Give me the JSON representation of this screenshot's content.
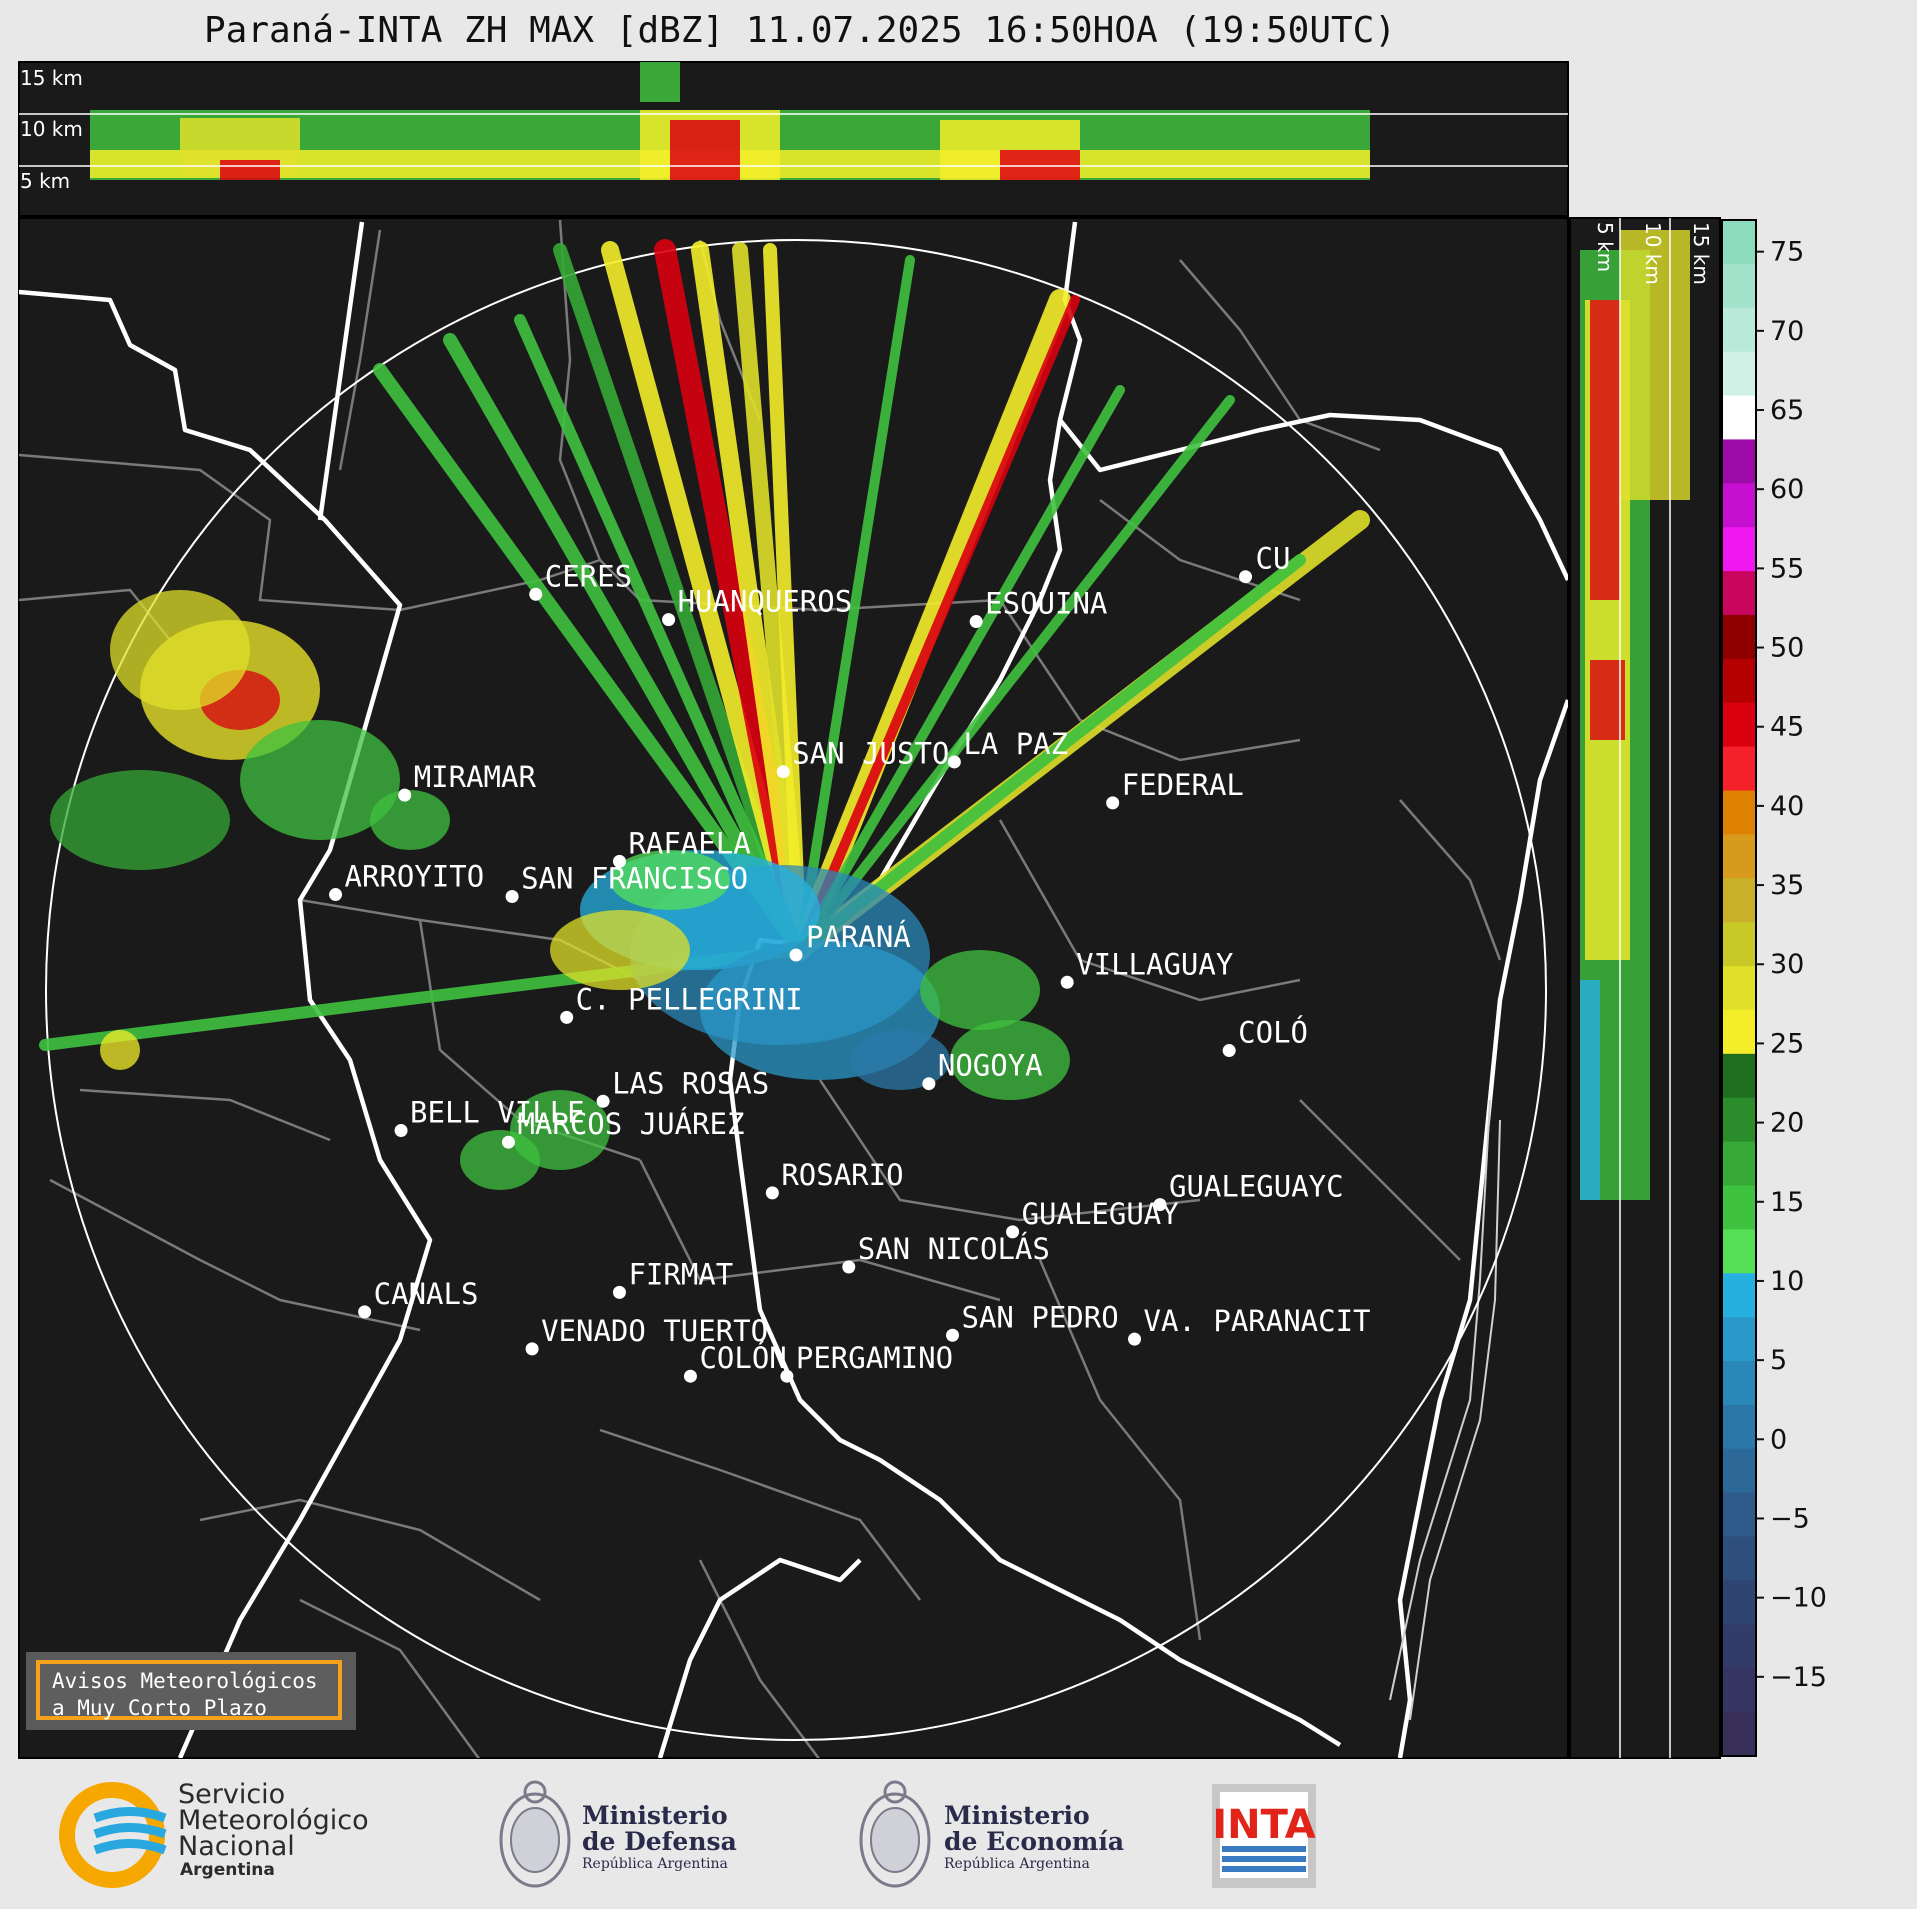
{
  "title": "Paraná-INTA ZH MAX [dBZ] 11.07.2025 16:50HOA (19:50UTC)",
  "top_panel": {
    "labels": [
      "15 km",
      "10 km",
      "5 km"
    ]
  },
  "side_panel": {
    "labels": [
      "5 km",
      "10 km",
      "15 km"
    ]
  },
  "cities": [
    {
      "name": "CERES",
      "lat": -29.88,
      "lon": -61.95
    },
    {
      "name": "HUANQUEROS",
      "lat": -30.01,
      "lon": -61.22
    },
    {
      "name": "ESQUINA",
      "lat": -30.02,
      "lon": -59.53
    },
    {
      "name": "CU",
      "lat": -29.79,
      "lon": -58.05
    },
    {
      "name": "SAN JUSTO",
      "lat": -30.79,
      "lon": -60.59
    },
    {
      "name": "LA PAZ",
      "lat": -30.74,
      "lon": -59.65
    },
    {
      "name": "FEDERAL",
      "lat": -30.95,
      "lon": -58.78
    },
    {
      "name": "MIRAMAR",
      "lat": -30.91,
      "lon": -62.67
    },
    {
      "name": "RAFAELA",
      "lat": -31.25,
      "lon": -61.49
    },
    {
      "name": "ARROYITO",
      "lat": -31.42,
      "lon": -63.05
    },
    {
      "name": "SAN FRANCISCO",
      "lat": -31.43,
      "lon": -62.08
    },
    {
      "name": "PARANÁ",
      "lat": -31.73,
      "lon": -60.52
    },
    {
      "name": "VILLAGUAY",
      "lat": -31.87,
      "lon": -59.03
    },
    {
      "name": "C. PELLEGRINI",
      "lat": -32.05,
      "lon": -61.78
    },
    {
      "name": "COLÓ",
      "lat": -32.22,
      "lon": -58.14
    },
    {
      "name": "NOGOYA",
      "lat": -32.39,
      "lon": -59.79
    },
    {
      "name": "LAS ROSAS",
      "lat": -32.48,
      "lon": -61.58
    },
    {
      "name": "BELL VILLE",
      "lat": -32.63,
      "lon": -62.69
    },
    {
      "name": "MARCOS JUÁREZ",
      "lat": -32.69,
      "lon": -62.1
    },
    {
      "name": "ROSARIO",
      "lat": -32.95,
      "lon": -60.65
    },
    {
      "name": "GUALEGUAYC",
      "lat": -33.01,
      "lon": -58.52
    },
    {
      "name": "GUALEGUAY",
      "lat": -33.15,
      "lon": -59.33
    },
    {
      "name": "SAN NICOLÁS",
      "lat": -33.33,
      "lon": -60.23
    },
    {
      "name": "FIRMAT",
      "lat": -33.46,
      "lon": -61.49
    },
    {
      "name": "CANALS",
      "lat": -33.56,
      "lon": -62.89
    },
    {
      "name": "SAN PEDRO",
      "lat": -33.68,
      "lon": -59.66
    },
    {
      "name": "VENADO TUERTO",
      "lat": -33.75,
      "lon": -61.97
    },
    {
      "name": "VA. PARANACIT",
      "lat": -33.7,
      "lon": -58.66
    },
    {
      "name": "COLÓN",
      "lat": -33.89,
      "lon": -61.1
    },
    {
      "name": "PERGAMINO",
      "lat": -33.89,
      "lon": -60.57
    }
  ],
  "colorbar": {
    "ticks": [
      75,
      70,
      65,
      60,
      55,
      50,
      45,
      40,
      35,
      30,
      25,
      20,
      15,
      10,
      5,
      0,
      "−5",
      "−10",
      "−15"
    ],
    "colors": [
      "#8ddcbd",
      "#a3e3cb",
      "#b9ead9",
      "#cff1e6",
      "#ffffff",
      "#9c0aa7",
      "#c70fcf",
      "#ef18f0",
      "#c8065d",
      "#8e0000",
      "#b40000",
      "#da0010",
      "#f4202a",
      "#de8000",
      "#d89a1c",
      "#c8b02a",
      "#c8c827",
      "#e0e02a",
      "#f4ee2a",
      "#1e6e1e",
      "#2b8c2b",
      "#35a835",
      "#3fc23f",
      "#55e055",
      "#26b0e0",
      "#2a98c8",
      "#2a88b8",
      "#2b78a8",
      "#2c6898",
      "#2d5a88",
      "#2e4e7c",
      "#304472",
      "#333b68",
      "#363460",
      "#39305a"
    ],
    "min": -20,
    "max": 77
  },
  "notice": {
    "line1": "Avisos Meteorológicos",
    "line2": "a Muy Corto Plazo"
  },
  "logos": {
    "smn": {
      "line1": "Servicio",
      "line2": "Meteorológico",
      "line3": "Nacional",
      "line4": "Argentina"
    },
    "defensa": {
      "line1": "Ministerio",
      "line2": "de Defensa",
      "line3": "República Argentina"
    },
    "economia": {
      "line1": "Ministerio",
      "line2": "de Economía",
      "line3": "República Argentina"
    },
    "inta": {
      "text": "INTA"
    }
  },
  "colors": {
    "map_bg": "#1a1a1a",
    "range_ring": "#ffffff",
    "notice_border": "#f5a11b",
    "smn_yellow": "#f6a800",
    "smn_blue": "#29a8df",
    "inta_red": "#e2231a"
  }
}
